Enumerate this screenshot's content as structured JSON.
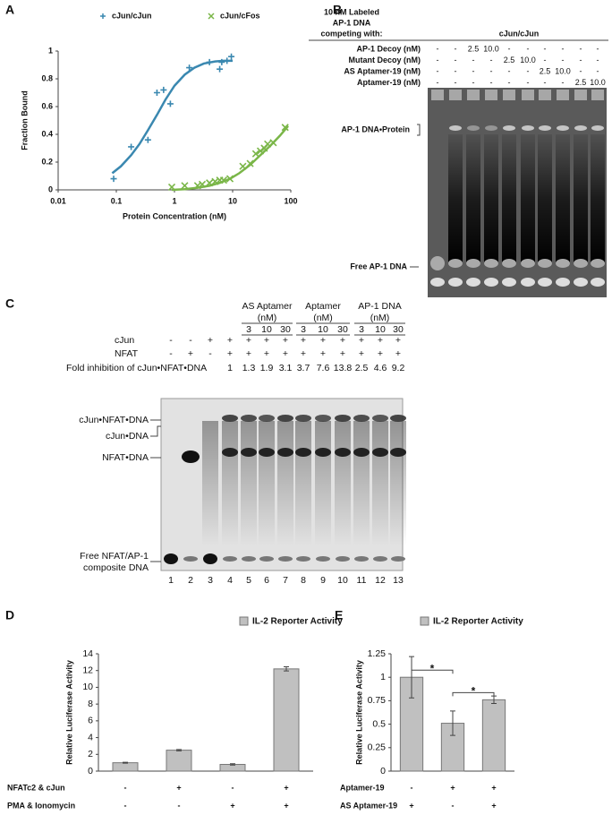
{
  "panel_labels": [
    "A",
    "B",
    "C",
    "D",
    "E"
  ],
  "chart_data": [
    {
      "type": "scatter",
      "x_label": "Protein Concentration (nM)",
      "y_label": "Fraction Bound",
      "log_x": true,
      "xlim": [
        0.01,
        100
      ],
      "xticks": [
        0.01,
        0.1,
        1,
        10,
        100
      ],
      "ylim": [
        0,
        1
      ],
      "yticks": [
        0,
        0.2,
        0.4,
        0.6,
        0.8,
        1
      ],
      "legend": "top",
      "series": [
        {
          "name": "cJun/cJun",
          "color": "#3a88b0",
          "marker": "+",
          "x": [
            0.09,
            0.18,
            0.35,
            0.5,
            0.65,
            0.85,
            1.8,
            4,
            6,
            6.5,
            8,
            9.5
          ],
          "values": [
            0.08,
            0.31,
            0.36,
            0.7,
            0.72,
            0.62,
            0.88,
            0.92,
            0.87,
            0.92,
            0.93,
            0.96
          ],
          "fit": {
            "x": [
              0.085,
              0.12,
              0.18,
              0.25,
              0.35,
              0.5,
              0.7,
              1,
              1.5,
              2.2,
              3.2,
              5,
              7,
              10
            ],
            "y": [
              0.12,
              0.17,
              0.25,
              0.33,
              0.43,
              0.54,
              0.65,
              0.75,
              0.83,
              0.88,
              0.91,
              0.925,
              0.93,
              0.93
            ]
          }
        },
        {
          "name": "cJun/cFos",
          "color": "#7ab648",
          "marker": "x",
          "x": [
            0.9,
            1.5,
            2.5,
            3,
            4,
            5,
            6,
            7,
            9,
            15,
            20,
            25,
            30,
            35,
            40,
            50,
            80
          ],
          "values": [
            0.02,
            0.03,
            0.03,
            0.04,
            0.05,
            0.06,
            0.07,
            0.07,
            0.08,
            0.17,
            0.19,
            0.26,
            0.28,
            0.3,
            0.33,
            0.34,
            0.45
          ],
          "fit": {
            "x": [
              0.9,
              1.5,
              2.5,
              4,
              6,
              9,
              13,
              20,
              30,
              45,
              65,
              90
            ],
            "y": [
              0,
              0.005,
              0.015,
              0.03,
              0.05,
              0.08,
              0.12,
              0.18,
              0.25,
              0.32,
              0.39,
              0.46
            ]
          }
        }
      ]
    },
    {
      "type": "bar",
      "y_label": "Relative Luciferase Activity",
      "legend": "top",
      "categories": [
        null,
        null,
        null,
        null
      ],
      "ylim": [
        0,
        14
      ],
      "yticks": [
        0,
        2,
        4,
        6,
        8,
        10,
        12,
        14
      ],
      "series": [
        {
          "name": "IL-2 Reporter Activity",
          "color": "#c0c0c0",
          "values": [
            1,
            2.5,
            0.8,
            12.2
          ],
          "errors": [
            0.05,
            0.08,
            0.08,
            0.25
          ]
        }
      ],
      "conditions": [
        {
          "label": "NFATc2 & cJun",
          "values": [
            "-",
            "+",
            "-",
            "+"
          ]
        },
        {
          "label": "PMA & Ionomycin",
          "values": [
            "-",
            "-",
            "+",
            "+"
          ]
        }
      ]
    },
    {
      "type": "bar",
      "y_label": "Relative Luciferase Activity",
      "legend": "top",
      "categories": [
        null,
        null,
        null
      ],
      "ylim": [
        0,
        1.25
      ],
      "yticks": [
        0,
        0.25,
        0.5,
        0.75,
        1,
        1.25
      ],
      "series": [
        {
          "name": "IL-2 Reporter Activity",
          "color": "#c0c0c0",
          "values": [
            1,
            0.51,
            0.76
          ],
          "errors": [
            0.22,
            0.13,
            0.04
          ]
        }
      ],
      "conditions": [
        {
          "label": "Aptamer-19",
          "values": [
            "-",
            "+",
            "+"
          ]
        },
        {
          "label": "AS Aptamer-19",
          "values": [
            "+",
            "-",
            "+"
          ]
        }
      ],
      "annotations": [
        "*",
        "*"
      ]
    }
  ],
  "gel_b": {
    "header_lines": [
      "10 nM Labeled",
      "AP-1 DNA",
      "competing with:"
    ],
    "group": "cJun/cJun",
    "rows": [
      {
        "label": "AP-1  Decoy (nM)",
        "lanes": [
          "-",
          "-",
          "2.5",
          "10.0",
          "-",
          "-",
          "-",
          "-",
          "-",
          "-"
        ]
      },
      {
        "label": "Mutant Decoy (nM)",
        "lanes": [
          "-",
          "-",
          "-",
          "-",
          "2.5",
          "10.0",
          "-",
          "-",
          "-",
          "-"
        ]
      },
      {
        "label": "AS Aptamer-19 (nM)",
        "lanes": [
          "-",
          "-",
          "-",
          "-",
          "-",
          "-",
          "2.5",
          "10.0",
          "-",
          "-"
        ]
      },
      {
        "label": "Aptamer-19 (nM)",
        "lanes": [
          "-",
          "-",
          "-",
          "-",
          "-",
          "-",
          "-",
          "-",
          "2.5",
          "10.0"
        ]
      }
    ],
    "band_labels": [
      "AP-1 DNA•Protein",
      "Free AP-1 DNA"
    ]
  },
  "gel_c": {
    "groups": [
      {
        "label": "AS Aptamer",
        "unit": "(nM)",
        "concentrations": [
          3,
          10,
          30
        ]
      },
      {
        "label": "Aptamer",
        "unit": "(nM)",
        "concentrations": [
          3,
          10,
          30
        ]
      },
      {
        "label": "AP-1 DNA",
        "unit": "(nM)",
        "concentrations": [
          3,
          10,
          30
        ]
      }
    ],
    "rows": [
      {
        "label": "cJun",
        "lanes": [
          "-",
          "-",
          "+",
          "+",
          "+",
          "+",
          "+",
          "+",
          "+",
          "+",
          "+",
          "+",
          "+"
        ]
      },
      {
        "label": "NFAT",
        "lanes": [
          "-",
          "+",
          "-",
          "+",
          "+",
          "+",
          "+",
          "+",
          "+",
          "+",
          "+",
          "+",
          "+"
        ]
      },
      {
        "label": "Fold inhibition of cJun•NFAT•DNA",
        "lanes": [
          null,
          null,
          null,
          1,
          1.3,
          1.9,
          3.1,
          3.7,
          7.6,
          13.8,
          2.5,
          4.6,
          9.2
        ]
      }
    ],
    "band_labels": [
      [
        "cJun•NFAT•DNA"
      ],
      [
        "cJun•DNA"
      ],
      [
        "NFAT•DNA"
      ],
      [
        "Free NFAT/AP-1",
        "composite DNA"
      ]
    ],
    "lane_numbers": [
      1,
      2,
      3,
      4,
      5,
      6,
      7,
      8,
      9,
      10,
      11,
      12,
      13
    ]
  }
}
